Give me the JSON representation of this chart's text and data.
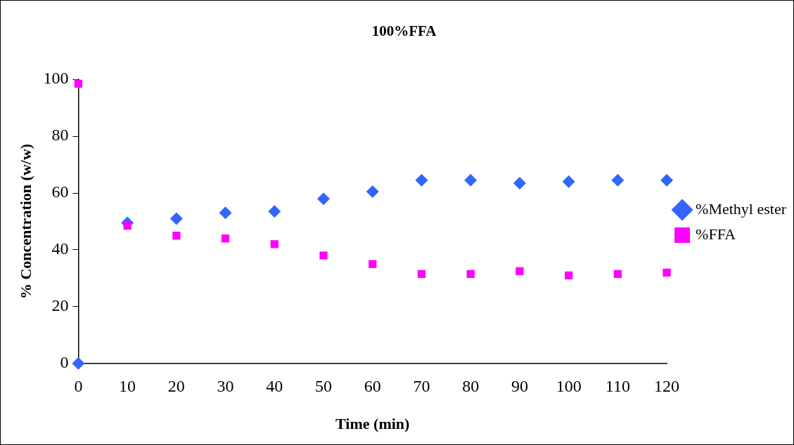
{
  "chart_data": {
    "type": "scatter",
    "title": "100%FFA",
    "xlabel": "Time (min)",
    "ylabel": "% Concentration (w/w)",
    "xlim": [
      0,
      120
    ],
    "xticks": [
      0,
      10,
      20,
      30,
      40,
      50,
      60,
      70,
      80,
      90,
      100,
      110,
      120
    ],
    "ylim": [
      0,
      100
    ],
    "yticks": [
      0,
      20,
      40,
      60,
      80,
      100
    ],
    "grid": false,
    "legend": "right",
    "series": [
      {
        "name": "%Methyl ester",
        "color": "#3366ff",
        "marker": "diamond",
        "x": [
          0,
          10,
          20,
          30,
          40,
          50,
          60,
          70,
          80,
          90,
          100,
          110,
          120
        ],
        "values": [
          0,
          49.5,
          51,
          53,
          53.5,
          58,
          60.5,
          64.5,
          64.5,
          63.5,
          64,
          64.5,
          64.5
        ]
      },
      {
        "name": "%FFA",
        "color": "#ff00ff",
        "marker": "square",
        "x": [
          0,
          10,
          20,
          30,
          40,
          50,
          60,
          70,
          80,
          90,
          100,
          110,
          120
        ],
        "values": [
          98.5,
          48.5,
          45,
          44,
          42,
          38,
          35,
          31.5,
          31.5,
          32.5,
          31,
          31.5,
          32
        ]
      }
    ]
  }
}
